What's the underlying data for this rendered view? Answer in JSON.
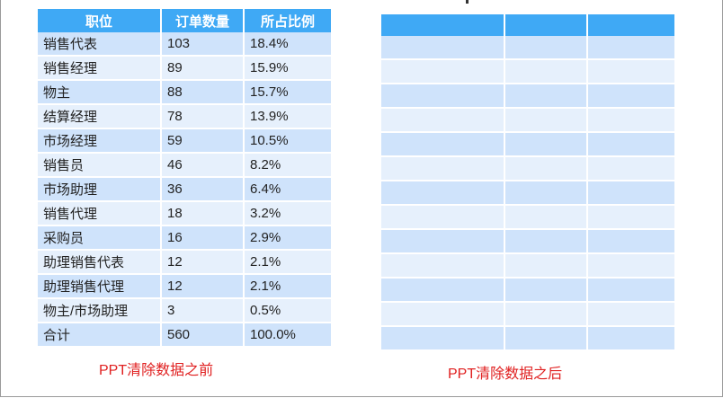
{
  "left_table": {
    "headers": [
      "职位",
      "订单数量",
      "所占比例"
    ],
    "rows": [
      [
        "销售代表",
        "103",
        "18.4%"
      ],
      [
        "销售经理",
        "89",
        "15.9%"
      ],
      [
        "物主",
        "88",
        "15.7%"
      ],
      [
        "结算经理",
        "78",
        "13.9%"
      ],
      [
        "市场经理",
        "59",
        "10.5%"
      ],
      [
        "销售员",
        "46",
        "8.2%"
      ],
      [
        "市场助理",
        "36",
        "6.4%"
      ],
      [
        "销售代理",
        "18",
        "3.2%"
      ],
      [
        "采购员",
        "16",
        "2.9%"
      ],
      [
        "助理销售代表",
        "12",
        "2.1%"
      ],
      [
        "助理销售代理",
        "12",
        "2.1%"
      ],
      [
        "物主/市场助理",
        "3",
        "0.5%"
      ],
      [
        "合计",
        "560",
        "100.0%"
      ]
    ]
  },
  "right_table": {
    "header_cells": 3,
    "empty_rows": 13
  },
  "captions": {
    "before": "PPT清除数据之前",
    "after": "PPT清除数据之后"
  },
  "colors": {
    "header": "#3fa9f5",
    "row_odd": "#cfe3fb",
    "row_even": "#e6f0fc",
    "caption": "#e02020"
  }
}
